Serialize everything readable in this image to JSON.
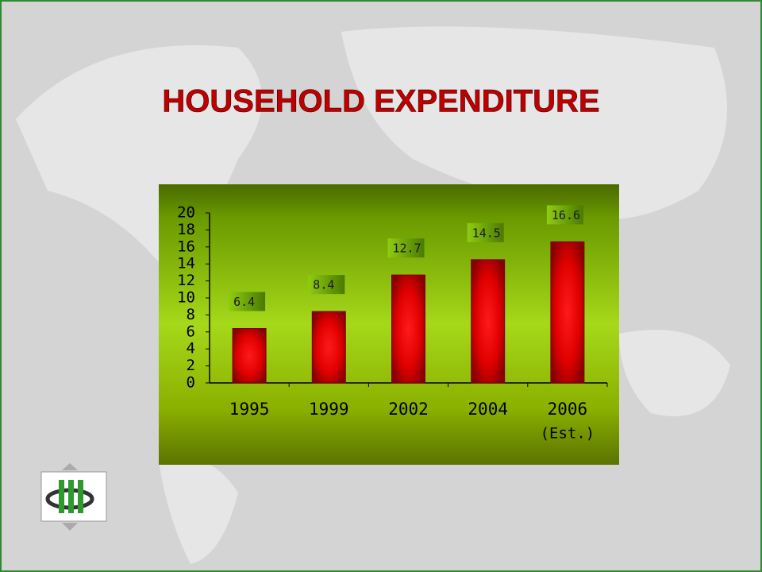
{
  "chart_data": {
    "type": "bar",
    "title": "HOUSEHOLD EXPENDITURE",
    "categories": [
      "1995",
      "1999",
      "2002",
      "2004",
      "2006"
    ],
    "category_note": "(Est.)",
    "values": [
      6.4,
      8.4,
      12.7,
      14.5,
      16.6
    ],
    "color": "#e00000",
    "ylim": [
      0,
      20
    ],
    "yticks": [
      0,
      2,
      4,
      6,
      8,
      10,
      12,
      14,
      16,
      18,
      20
    ]
  }
}
